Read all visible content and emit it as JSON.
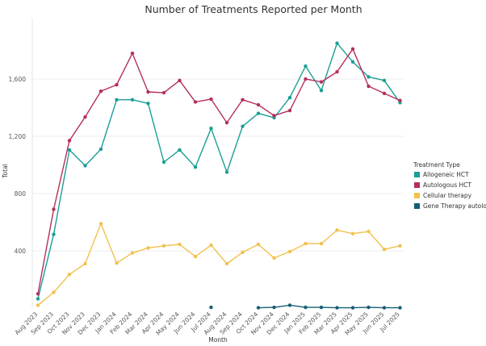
{
  "chart_data": {
    "type": "line",
    "title": "Number of Treatments Reported per Month",
    "xlabel": "Month",
    "ylabel": "Total",
    "ylim": [
      0,
      2000
    ],
    "yticks": [
      400,
      800,
      1200,
      1600
    ],
    "ytick_labels": [
      "400",
      "800",
      "1,200",
      "1,600"
    ],
    "grid": true,
    "legend_position": "right",
    "legend_title": "Treatment Type",
    "categories": [
      "Aug 2023",
      "Sep 2023",
      "Oct 2023",
      "Nov 2023",
      "Dec 2023",
      "Jan 2024",
      "Feb 2024",
      "Mar 2024",
      "Apr 2024",
      "May 2024",
      "Jun 2024",
      "Jul 2024",
      "Aug 2024",
      "Sep 2024",
      "Oct 2024",
      "Nov 2024",
      "Dec 2024",
      "Jan 2025",
      "Feb 2025",
      "Mar 2025",
      "Apr 2025",
      "May 2025",
      "Jun 2025",
      "Jul 2025"
    ],
    "series": [
      {
        "name": "Allogeneic HCT",
        "color": "#1a9e96",
        "values": [
          65,
          515,
          1105,
          995,
          1110,
          1455,
          1455,
          1430,
          1020,
          1105,
          985,
          1255,
          950,
          1270,
          1360,
          1330,
          1470,
          1690,
          1520,
          1850,
          1720,
          1615,
          1590,
          1435
        ]
      },
      {
        "name": "Autologous HCT",
        "color": "#b5305a",
        "values": [
          100,
          690,
          1170,
          1335,
          1515,
          1560,
          1780,
          1510,
          1505,
          1590,
          1440,
          1460,
          1295,
          1455,
          1420,
          1345,
          1380,
          1600,
          1580,
          1650,
          1810,
          1550,
          1500,
          1450
        ]
      },
      {
        "name": "Cellular therapy",
        "color": "#f2c14e",
        "values": [
          20,
          110,
          235,
          310,
          590,
          315,
          385,
          420,
          435,
          445,
          360,
          440,
          310,
          390,
          445,
          350,
          395,
          450,
          450,
          545,
          520,
          535,
          410,
          435
        ]
      },
      {
        "name": "Gene Therapy autologous",
        "color": "#145f74",
        "values": [
          null,
          null,
          null,
          null,
          null,
          null,
          null,
          null,
          null,
          null,
          null,
          5,
          null,
          null,
          2,
          5,
          20,
          5,
          5,
          2,
          2,
          5,
          2,
          2
        ]
      }
    ]
  }
}
